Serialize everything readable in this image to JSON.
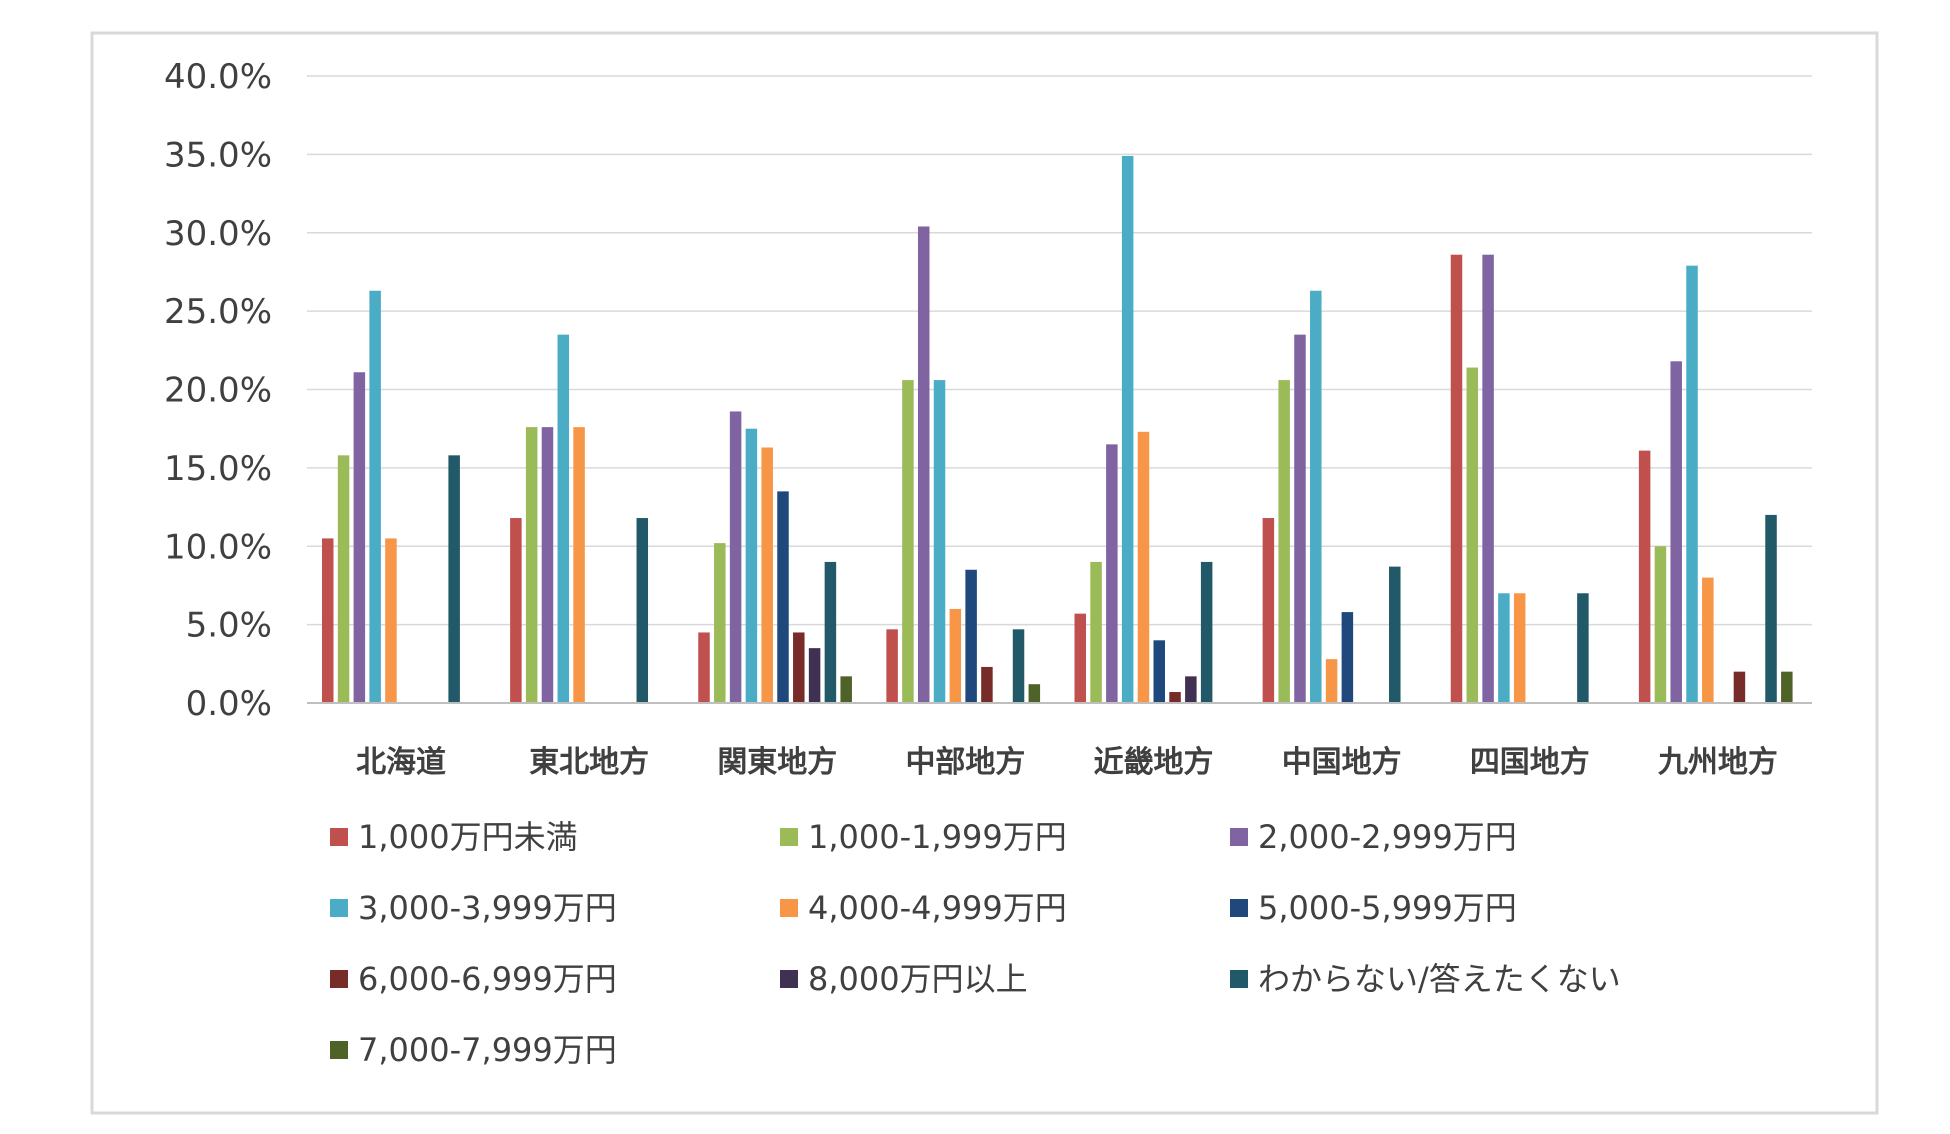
{
  "chart_data": {
    "type": "bar",
    "ylim": [
      0,
      40
    ],
    "y_ticks": [
      "0.0%",
      "5.0%",
      "10.0%",
      "15.0%",
      "20.0%",
      "25.0%",
      "30.0%",
      "35.0%",
      "40.0%"
    ],
    "grid": true,
    "legend_position": "bottom",
    "categories": [
      "北海道",
      "東北地方",
      "関東地方",
      "中部地方",
      "近畿地方",
      "中国地方",
      "四国地方",
      "九州地方"
    ],
    "series": [
      {
        "name": "1,000万円未満",
        "color": "#c0504d",
        "values": [
          10.5,
          11.8,
          4.5,
          4.7,
          5.7,
          11.8,
          28.6,
          16.1
        ]
      },
      {
        "name": "1,000-1,999万円",
        "color": "#9bbb59",
        "values": [
          15.8,
          17.6,
          10.2,
          20.6,
          9.0,
          20.6,
          21.4,
          10.0
        ]
      },
      {
        "name": "2,000-2,999万円",
        "color": "#8064a2",
        "values": [
          21.1,
          17.6,
          18.6,
          30.4,
          16.5,
          23.5,
          28.6,
          21.8
        ]
      },
      {
        "name": "3,000-3,999万円",
        "color": "#4bacc6",
        "values": [
          26.3,
          23.5,
          17.5,
          20.6,
          34.9,
          26.3,
          7.0,
          27.9
        ]
      },
      {
        "name": "4,000-4,999万円",
        "color": "#f79646",
        "values": [
          10.5,
          17.6,
          16.3,
          6.0,
          17.3,
          2.8,
          7.0,
          8.0
        ]
      },
      {
        "name": "5,000-5,999万円",
        "color": "#1f497d",
        "values": [
          0,
          0,
          13.5,
          8.5,
          4.0,
          5.8,
          0,
          0
        ]
      },
      {
        "name": "6,000-6,999万円",
        "color": "#772c2a",
        "values": [
          0,
          0,
          4.5,
          2.3,
          0.7,
          0,
          0,
          2.0
        ]
      },
      {
        "name": "8,000万円以上",
        "color": "#403152",
        "values": [
          0,
          0,
          3.5,
          0,
          1.7,
          0,
          0,
          0
        ]
      },
      {
        "name": "わからない/答えたくない",
        "color": "#215968",
        "values": [
          15.8,
          11.8,
          9.0,
          4.7,
          9.0,
          8.7,
          7.0,
          12.0
        ]
      },
      {
        "name": "7,000-7,999万円",
        "color": "#4f6228",
        "values": [
          0,
          0,
          1.7,
          1.2,
          0,
          0,
          0,
          2.0
        ]
      }
    ]
  }
}
